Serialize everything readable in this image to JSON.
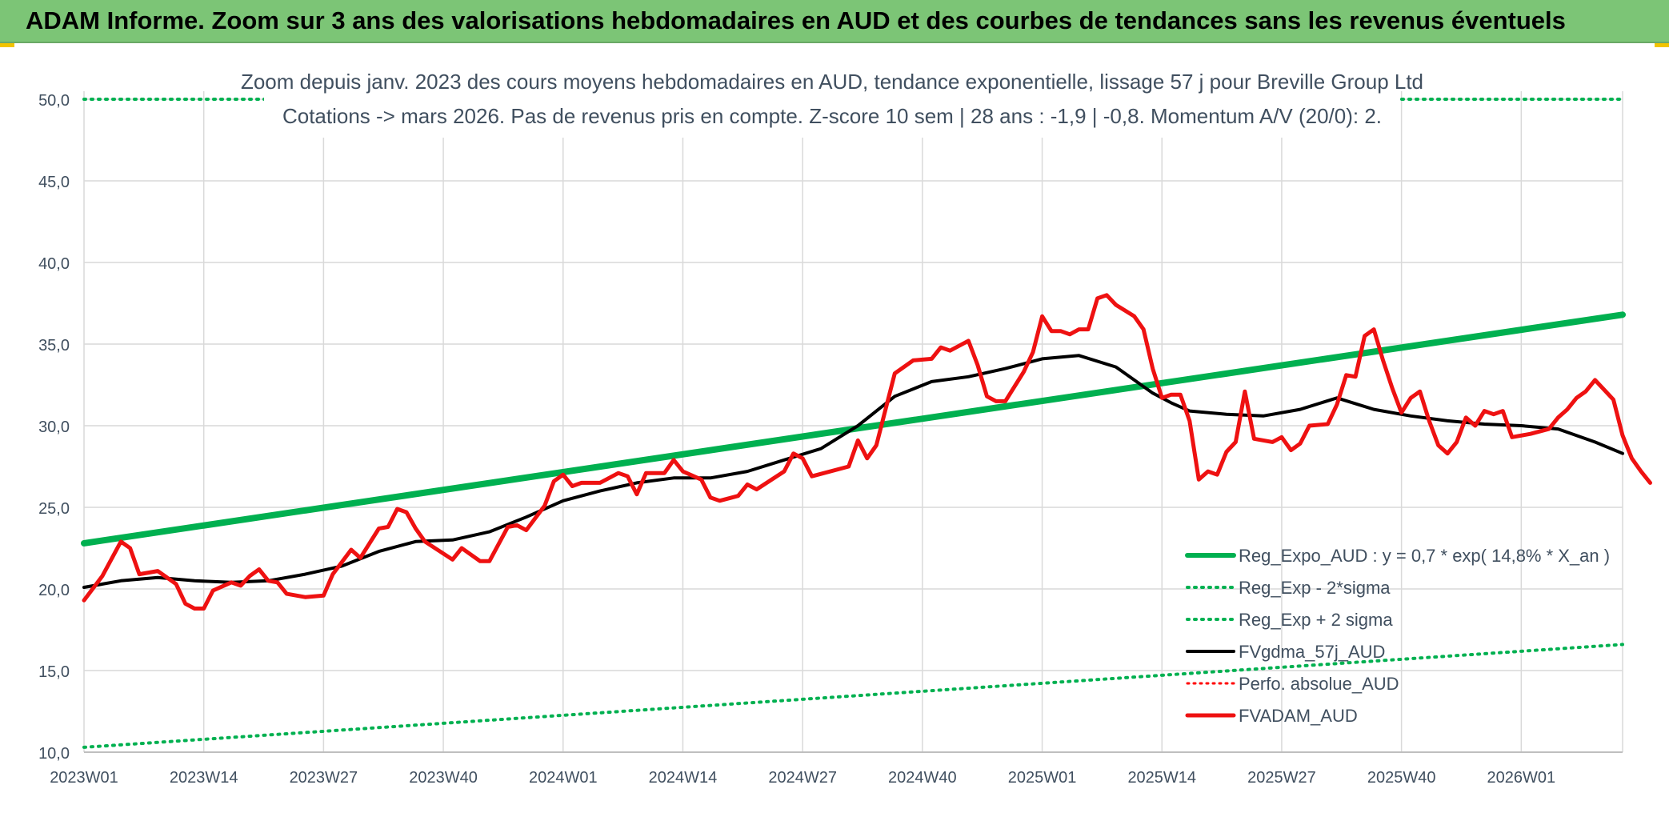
{
  "header": {
    "banner_title": "ADAM Informe. Zoom sur 3 ans des valorisations hebdomadaires en AUD et des courbes de tendances sans les revenus éventuels"
  },
  "colors": {
    "banner": "#7cc576",
    "reg_expo": "#00b050",
    "sigma_bands": "#00b050",
    "fvgdma": "#000000",
    "perfo": "#ff0000",
    "fvadam": "#ee1111",
    "grid": "#d9d9d9"
  },
  "chart_data": {
    "type": "line",
    "title": "Zoom depuis janv. 2023 des cours moyens hebdomadaires en AUD, tendance exponentielle, lissage 57 j pour Breville Group Ltd",
    "subtitle": "Cotations -> mars 2026. Pas de revenus pris en compte. Z-score 10 sem | 28 ans : -1,9 | -0,8. Momentum A/V (20/0): 2.",
    "xlabel": "",
    "ylabel": "",
    "ylim": [
      10,
      50
    ],
    "yticks": [
      "50,0",
      "45,0",
      "40,0",
      "35,0",
      "30,0",
      "25,0",
      "20,0",
      "15,0",
      "10,0"
    ],
    "ytick_values": [
      50,
      45,
      40,
      35,
      30,
      25,
      20,
      15,
      10
    ],
    "xlim": [
      0,
      167
    ],
    "xticks": [
      "2023W01",
      "2023W14",
      "2023W27",
      "2023W40",
      "2024W01",
      "2024W14",
      "2024W27",
      "2024W40",
      "2025W01",
      "2025W14",
      "2025W27",
      "2025W40",
      "2026W01"
    ],
    "xtick_values": [
      0,
      13,
      26,
      39,
      52,
      65,
      78,
      91,
      104,
      117,
      130,
      143,
      156
    ],
    "grid": true,
    "legend_position": "bottom-right",
    "series": [
      {
        "name": "Reg_Expo_AUD : y = 0,7 * exp( 14,8% *  X_an )",
        "style": "solid-thick",
        "points": [
          [
            0,
            22.8
          ],
          [
            167,
            36.8
          ]
        ]
      },
      {
        "name": "Reg_Exp - 2*sigma",
        "style": "dotted",
        "points": [
          [
            0,
            10.3
          ],
          [
            167,
            16.6
          ]
        ]
      },
      {
        "name": "Reg_Exp + 2 sigma",
        "style": "dotted",
        "points": [
          [
            0,
            50.0
          ],
          [
            167,
            50.0
          ]
        ]
      },
      {
        "name": "FVgdma_57j_AUD",
        "style": "solid",
        "points": [
          [
            0,
            20.1
          ],
          [
            4,
            20.5
          ],
          [
            8,
            20.7
          ],
          [
            12,
            20.5
          ],
          [
            16,
            20.4
          ],
          [
            20,
            20.5
          ],
          [
            24,
            20.9
          ],
          [
            28,
            21.4
          ],
          [
            32,
            22.3
          ],
          [
            36,
            22.9
          ],
          [
            40,
            23.0
          ],
          [
            44,
            23.5
          ],
          [
            48,
            24.4
          ],
          [
            52,
            25.4
          ],
          [
            56,
            26.0
          ],
          [
            60,
            26.5
          ],
          [
            64,
            26.8
          ],
          [
            68,
            26.8
          ],
          [
            72,
            27.2
          ],
          [
            76,
            27.9
          ],
          [
            80,
            28.6
          ],
          [
            84,
            30.0
          ],
          [
            88,
            31.8
          ],
          [
            92,
            32.7
          ],
          [
            96,
            33.0
          ],
          [
            100,
            33.5
          ],
          [
            104,
            34.1
          ],
          [
            108,
            34.3
          ],
          [
            112,
            33.6
          ],
          [
            116,
            32.0
          ],
          [
            118,
            31.4
          ],
          [
            120,
            30.9
          ],
          [
            124,
            30.7
          ],
          [
            128,
            30.6
          ],
          [
            132,
            31.0
          ],
          [
            136,
            31.7
          ],
          [
            140,
            31.0
          ],
          [
            144,
            30.6
          ],
          [
            148,
            30.3
          ],
          [
            152,
            30.1
          ],
          [
            156,
            30.0
          ],
          [
            160,
            29.8
          ],
          [
            164,
            29.0
          ],
          [
            167,
            28.3
          ]
        ]
      },
      {
        "name": "Perfo. absolue_AUD",
        "style": "dotted",
        "points": []
      },
      {
        "name": "FVADAM_AUD",
        "style": "solid-thick",
        "points": [
          [
            0,
            19.3
          ],
          [
            2,
            20.8
          ],
          [
            4,
            22.9
          ],
          [
            5,
            22.5
          ],
          [
            6,
            20.9
          ],
          [
            8,
            21.1
          ],
          [
            9,
            20.7
          ],
          [
            10,
            20.3
          ],
          [
            11,
            19.1
          ],
          [
            12,
            18.8
          ],
          [
            13,
            18.8
          ],
          [
            14,
            19.9
          ],
          [
            16,
            20.4
          ],
          [
            17,
            20.2
          ],
          [
            18,
            20.8
          ],
          [
            19,
            21.2
          ],
          [
            20,
            20.5
          ],
          [
            21,
            20.4
          ],
          [
            22,
            19.7
          ],
          [
            24,
            19.5
          ],
          [
            26,
            19.6
          ],
          [
            27,
            20.9
          ],
          [
            29,
            22.4
          ],
          [
            30,
            21.9
          ],
          [
            32,
            23.7
          ],
          [
            33,
            23.8
          ],
          [
            34,
            24.9
          ],
          [
            35,
            24.7
          ],
          [
            36,
            23.7
          ],
          [
            37,
            22.9
          ],
          [
            40,
            21.8
          ],
          [
            41,
            22.5
          ],
          [
            43,
            21.7
          ],
          [
            44,
            21.7
          ],
          [
            46,
            23.8
          ],
          [
            47,
            23.9
          ],
          [
            48,
            23.6
          ],
          [
            50,
            25.1
          ],
          [
            51,
            26.6
          ],
          [
            52,
            27.0
          ],
          [
            53,
            26.3
          ],
          [
            54,
            26.5
          ],
          [
            56,
            26.5
          ],
          [
            58,
            27.1
          ],
          [
            59,
            26.9
          ],
          [
            60,
            25.8
          ],
          [
            61,
            27.1
          ],
          [
            63,
            27.1
          ],
          [
            64,
            27.9
          ],
          [
            65,
            27.2
          ],
          [
            67,
            26.7
          ],
          [
            68,
            25.6
          ],
          [
            69,
            25.4
          ],
          [
            71,
            25.7
          ],
          [
            72,
            26.4
          ],
          [
            73,
            26.1
          ],
          [
            76,
            27.2
          ],
          [
            77,
            28.3
          ],
          [
            78,
            28.0
          ],
          [
            79,
            26.9
          ],
          [
            83,
            27.5
          ],
          [
            84,
            29.1
          ],
          [
            85,
            28.0
          ],
          [
            86,
            28.8
          ],
          [
            88,
            33.2
          ],
          [
            90,
            34.0
          ],
          [
            92,
            34.1
          ],
          [
            93,
            34.8
          ],
          [
            94,
            34.6
          ],
          [
            96,
            35.2
          ],
          [
            97,
            33.7
          ],
          [
            98,
            31.8
          ],
          [
            99,
            31.5
          ],
          [
            100,
            31.5
          ],
          [
            102,
            33.3
          ],
          [
            103,
            34.5
          ],
          [
            104,
            36.7
          ],
          [
            105,
            35.8
          ],
          [
            106,
            35.8
          ],
          [
            107,
            35.6
          ],
          [
            108,
            35.9
          ],
          [
            109,
            35.9
          ],
          [
            110,
            37.8
          ],
          [
            111,
            38.0
          ],
          [
            112,
            37.4
          ],
          [
            114,
            36.7
          ],
          [
            115,
            35.9
          ],
          [
            116,
            33.5
          ],
          [
            117,
            31.7
          ],
          [
            118,
            31.9
          ],
          [
            119,
            31.9
          ],
          [
            120,
            30.3
          ],
          [
            121,
            26.7
          ],
          [
            122,
            27.2
          ],
          [
            123,
            27.0
          ],
          [
            124,
            28.4
          ],
          [
            125,
            29.0
          ],
          [
            126,
            32.1
          ],
          [
            127,
            29.2
          ],
          [
            129,
            29.0
          ],
          [
            130,
            29.3
          ],
          [
            131,
            28.5
          ],
          [
            132,
            28.9
          ],
          [
            133,
            30.0
          ],
          [
            135,
            30.1
          ],
          [
            136,
            31.3
          ],
          [
            137,
            33.1
          ],
          [
            138,
            33.0
          ],
          [
            139,
            35.5
          ],
          [
            140,
            35.9
          ],
          [
            141,
            34.0
          ],
          [
            142,
            32.3
          ],
          [
            143,
            30.8
          ],
          [
            144,
            31.7
          ],
          [
            145,
            32.1
          ],
          [
            146,
            30.3
          ],
          [
            147,
            28.8
          ],
          [
            148,
            28.3
          ],
          [
            149,
            29.0
          ],
          [
            150,
            30.5
          ],
          [
            151,
            30.0
          ],
          [
            152,
            30.9
          ],
          [
            153,
            30.7
          ],
          [
            154,
            30.9
          ],
          [
            155,
            29.3
          ],
          [
            157,
            29.5
          ],
          [
            159,
            29.8
          ],
          [
            160,
            30.5
          ],
          [
            161,
            31.0
          ],
          [
            162,
            31.7
          ],
          [
            163,
            32.1
          ],
          [
            164,
            32.8
          ],
          [
            165,
            32.2
          ],
          [
            166,
            31.6
          ],
          [
            167,
            29.4
          ],
          [
            168,
            28.0
          ],
          [
            169,
            27.2
          ],
          [
            170,
            26.5
          ]
        ]
      }
    ]
  }
}
